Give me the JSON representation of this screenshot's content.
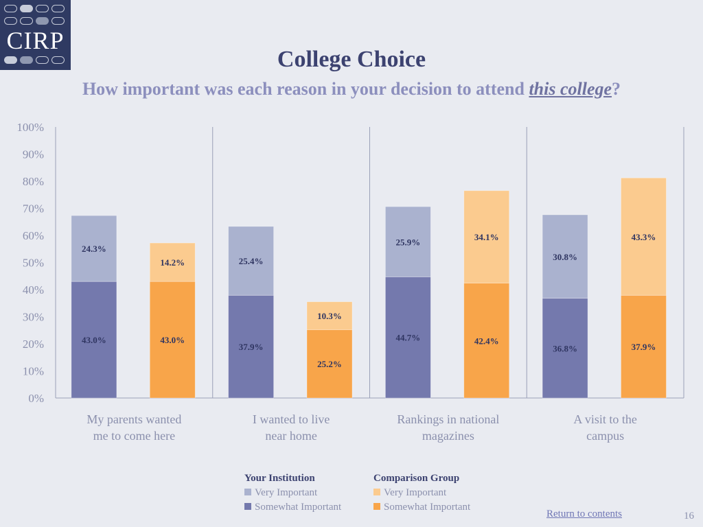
{
  "logo": {
    "text": "CIRP"
  },
  "header": {
    "title": "College Choice",
    "subtitle_prefix": "How important was each reason in your decision to attend ",
    "subtitle_emphasis": "this college",
    "subtitle_suffix": "?"
  },
  "colors": {
    "institution_very": "#aab2cf",
    "institution_somewhat": "#7479ad",
    "comparison_very": "#fbcb8f",
    "comparison_somewhat": "#f8a54a"
  },
  "chart_data": {
    "type": "bar",
    "stacked": true,
    "grouped": true,
    "ylim": [
      0,
      100
    ],
    "y_ticks": [
      "0%",
      "10%",
      "20%",
      "30%",
      "40%",
      "50%",
      "60%",
      "70%",
      "80%",
      "90%",
      "100%"
    ],
    "categories": [
      [
        "My parents wanted",
        "me to come here"
      ],
      [
        "I wanted to live",
        "near home"
      ],
      [
        "Rankings in national",
        "magazines"
      ],
      [
        "A visit to the",
        "campus"
      ]
    ],
    "groups": [
      {
        "name": "Your Institution",
        "series": [
          {
            "name": "Somewhat Important",
            "values": [
              43.0,
              37.9,
              44.7,
              36.8
            ],
            "labels": [
              "43.0%",
              "37.9%",
              "44.7%",
              "36.8%"
            ]
          },
          {
            "name": "Very Important",
            "values": [
              24.3,
              25.4,
              25.9,
              30.8
            ],
            "labels": [
              "24.3%",
              "25.4%",
              "25.9%",
              "30.8%"
            ]
          }
        ]
      },
      {
        "name": "Comparison Group",
        "series": [
          {
            "name": "Somewhat Important",
            "values": [
              43.0,
              25.2,
              42.4,
              37.9
            ],
            "labels": [
              "43.0%",
              "25.2%",
              "42.4%",
              "37.9%"
            ]
          },
          {
            "name": "Very Important",
            "values": [
              14.2,
              10.3,
              34.1,
              43.3
            ],
            "labels": [
              "14.2%",
              "10.3%",
              "34.1%",
              "43.3%"
            ]
          }
        ]
      }
    ],
    "grid": false,
    "legend": "bottom"
  },
  "legend": {
    "institution": {
      "title": "Your Institution",
      "very": "Very Important",
      "somewhat": "Somewhat Important"
    },
    "comparison": {
      "title": "Comparison Group",
      "very": "Very Important",
      "somewhat": "Somewhat Important"
    }
  },
  "footer": {
    "return_link": "Return to contents",
    "page_number": "16"
  }
}
